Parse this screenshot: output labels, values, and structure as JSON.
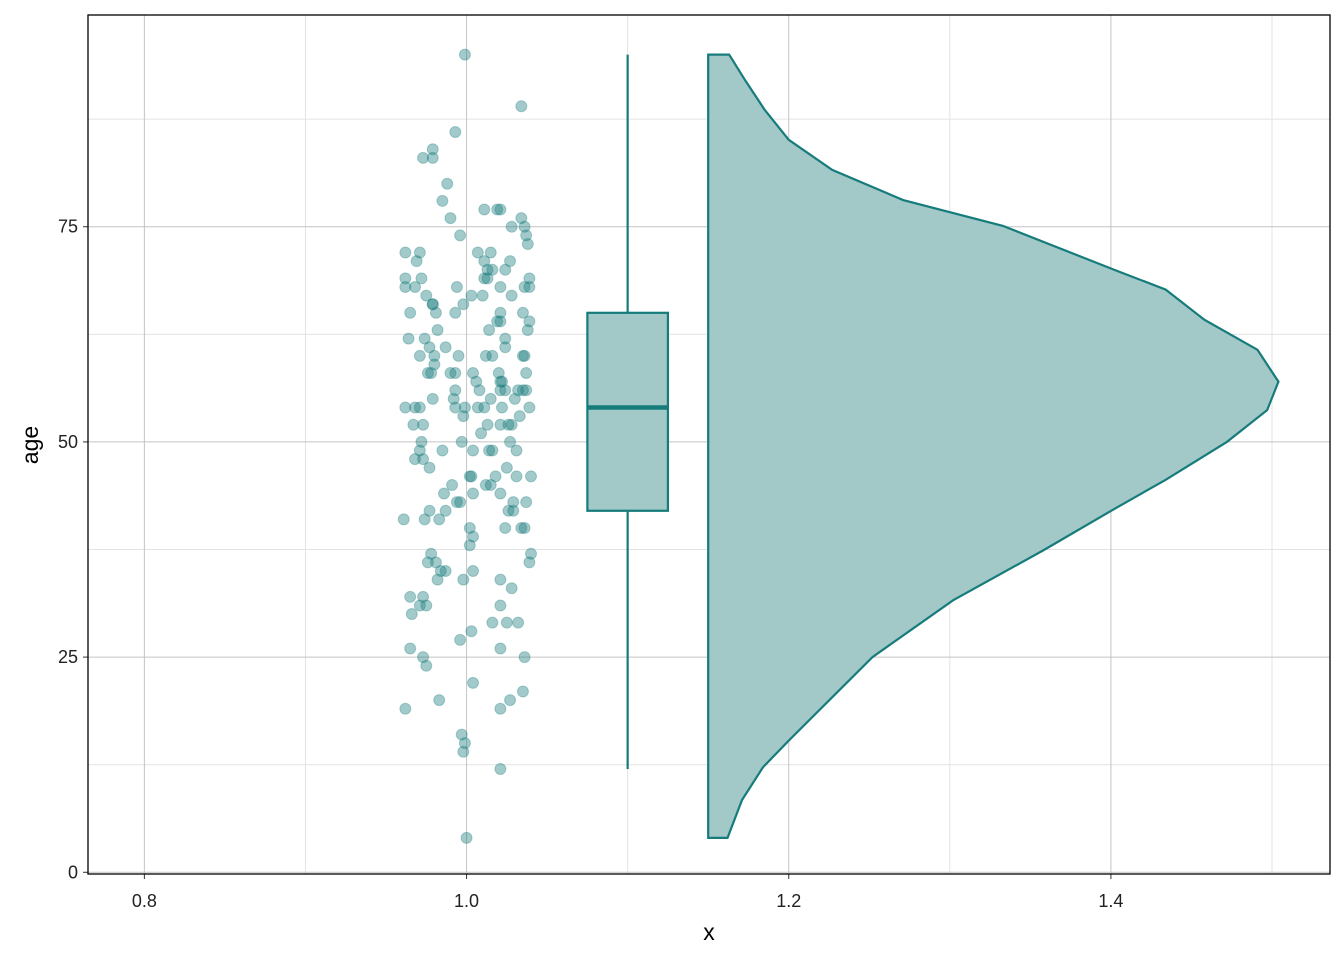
{
  "chart_data": {
    "type": "raincloud",
    "x_label": "x",
    "y_label": "age",
    "xlim": [
      0.765,
      1.536
    ],
    "ylim": [
      -0.2,
      99.6
    ],
    "xticks": [
      0.8,
      {
        "value": 1.0,
        "label": "1.0"
      },
      1.2,
      1.4
    ],
    "yticks": [
      0,
      25,
      50,
      75
    ],
    "grid": true,
    "minor_grid": true,
    "color": "#167b7b",
    "fill_color": "#a2c8c8",
    "points": {
      "x": [
        0.999,
        1.034,
        0.993,
        0.979,
        0.973,
        0.979,
        0.988,
        0.985,
        0.99,
        1.011,
        1.019,
        1.021,
        1.034,
        1.036,
        1.028,
        0.996,
        1.037,
        1.038,
        0.962,
        0.971,
        1.007,
        1.015,
        0.969,
        1.011,
        1.027,
        1.013,
        1.016,
        1.024,
        0.962,
        0.972,
        1.011,
        1.013,
        1.039,
        0.962,
        0.968,
        0.994,
        1.021,
        1.036,
        1.039,
        0.975,
        1.003,
        1.01,
        1.028,
        0.979,
        0.979,
        0.998,
        0.965,
        0.981,
        0.993,
        1.021,
        1.035,
        1.019,
        1.021,
        1.039,
        1.014,
        0.982,
        1.038,
        0.964,
        0.974,
        1.024,
        0.977,
        0.987,
        1.024,
        0.971,
        0.98,
        0.995,
        1.012,
        1.016,
        1.036,
        1.035,
        0.98,
        0.976,
        0.978,
        0.99,
        0.993,
        1.004,
        1.02,
        1.037,
        1.006,
        1.021,
        1.022,
        0.993,
        1.008,
        1.021,
        1.024,
        1.032,
        1.035,
        1.037,
        0.979,
        0.992,
        1.015,
        1.03,
        0.962,
        0.968,
        0.971,
        0.993,
        0.999,
        1.007,
        1.011,
        1.022,
        1.039,
        0.998,
        1.033,
        0.967,
        0.973,
        1.013,
        1.021,
        1.026,
        1.028,
        1.009,
        0.972,
        0.997,
        1.027,
        0.971,
        0.985,
        1.004,
        1.014,
        1.016,
        1.031,
        0.968,
        0.973,
        0.977,
        1.025,
        1.002,
        1.003,
        1.018,
        1.031,
        1.04,
        0.991,
        1.012,
        1.015,
        0.986,
        1.004,
        1.021,
        0.994,
        0.996,
        1.029,
        1.037,
        0.977,
        0.987,
        1.026,
        1.029,
        0.961,
        0.974,
        0.983,
        1.002,
        1.024,
        1.034,
        1.036,
        1.004,
        1.002,
        0.978,
        1.04,
        0.976,
        0.981,
        1.039,
        0.984,
        0.987,
        1.004,
        0.982,
        0.998,
        1.021,
        1.028,
        0.965,
        0.973,
        0.971,
        0.975,
        1.021,
        0.966,
        1.016,
        1.025,
        1.032,
        1.003,
        0.996,
        0.965,
        1.021,
        0.973,
        1.036,
        0.975,
        1.004,
        1.035,
        0.983,
        1.027,
        0.962,
        1.021,
        0.997,
        0.999,
        0.998,
        1.021,
        1.0
      ],
      "values": [
        95,
        89,
        86,
        84,
        83,
        83,
        80,
        78,
        76,
        77,
        77,
        77,
        76,
        75,
        75,
        74,
        74,
        73,
        72,
        72,
        72,
        72,
        71,
        71,
        71,
        70,
        70,
        70,
        69,
        69,
        69,
        69,
        69,
        68,
        68,
        68,
        68,
        68,
        68,
        67,
        67,
        67,
        67,
        66,
        66,
        66,
        65,
        65,
        65,
        65,
        65,
        64,
        64,
        64,
        63,
        63,
        63,
        62,
        62,
        62,
        61,
        61,
        61,
        60,
        60,
        60,
        60,
        60,
        60,
        60,
        59,
        58,
        58,
        58,
        58,
        58,
        58,
        58,
        57,
        57,
        57,
        56,
        56,
        56,
        56,
        56,
        56,
        56,
        55,
        55,
        55,
        55,
        54,
        54,
        54,
        54,
        54,
        54,
        54,
        54,
        54,
        53,
        53,
        52,
        52,
        52,
        52,
        52,
        52,
        51,
        50,
        50,
        50,
        49,
        49,
        49,
        49,
        49,
        49,
        48,
        48,
        47,
        47,
        46,
        46,
        46,
        46,
        46,
        45,
        45,
        45,
        44,
        44,
        44,
        43,
        43,
        43,
        43,
        42,
        42,
        42,
        42,
        41,
        41,
        41,
        40,
        40,
        40,
        40,
        39,
        38,
        37,
        37,
        36,
        36,
        36,
        35,
        35,
        35,
        34,
        34,
        34,
        33,
        32,
        32,
        31,
        31,
        31,
        30,
        29,
        29,
        29,
        28,
        27,
        26,
        26,
        25,
        25,
        24,
        22,
        21,
        20,
        20,
        19,
        19,
        16,
        15,
        14,
        12,
        4
      ]
    },
    "box": {
      "x": 1.1,
      "width": 0.05,
      "whisker_low": 12,
      "q1": 42,
      "median": 54,
      "q3": 65,
      "whisker_high": 95
    },
    "violin": {
      "baseline": 1.15,
      "y": [
        4,
        8.4,
        12.2,
        15.3,
        25,
        31.6,
        37.4,
        42.2,
        45.6,
        50,
        53.7,
        57,
        60.7,
        64.2,
        67.7,
        70,
        75.1,
        78.1,
        81.6,
        85.1,
        88.6,
        92,
        95
      ],
      "x": [
        1.162,
        1.171,
        1.184,
        1.2,
        1.252,
        1.302,
        1.358,
        1.402,
        1.434,
        1.472,
        1.497,
        1.504,
        1.491,
        1.458,
        1.434,
        1.402,
        1.333,
        1.271,
        1.227,
        1.2,
        1.185,
        1.173,
        1.163
      ]
    }
  }
}
